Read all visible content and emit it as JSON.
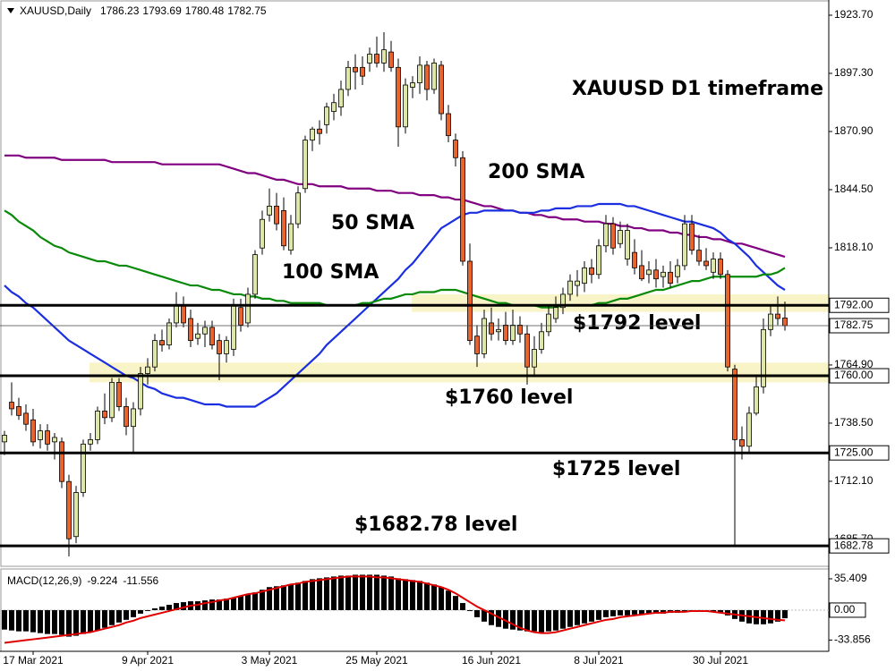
{
  "chart_data": {
    "type": "candlestick",
    "title": "XAUUSD,Daily",
    "annotation": "XAUUSD D1 timeframe",
    "up_color": "#dfe7a8",
    "down_color": "#e8642c",
    "ylim": [
      1673.9,
      1930.6
    ],
    "yticks": [
      {
        "value": 1923.7,
        "label": "1923.70"
      },
      {
        "value": 1897.3,
        "label": "1897.30"
      },
      {
        "value": 1870.9,
        "label": "1870.90"
      },
      {
        "value": 1844.5,
        "label": "1844.50"
      },
      {
        "value": 1818.1,
        "label": "1818.10"
      },
      {
        "value": 1764.9,
        "label": "1764.90"
      },
      {
        "value": 1738.5,
        "label": "1738.50"
      },
      {
        "value": 1712.1,
        "label": "1712.10"
      },
      {
        "value": 1685.7,
        "label": "1685.70"
      }
    ],
    "categories": [
      null,
      null,
      null,
      null,
      "17 Mar 2021",
      null,
      null,
      null,
      null,
      null,
      null,
      null,
      null,
      null,
      null,
      null,
      null,
      null,
      null,
      null,
      "9 Apr 2021",
      null,
      null,
      null,
      null,
      null,
      null,
      null,
      null,
      null,
      null,
      null,
      null,
      null,
      null,
      null,
      null,
      "3 May 2021",
      null,
      null,
      null,
      null,
      null,
      null,
      null,
      null,
      null,
      null,
      null,
      null,
      null,
      null,
      "25 May 2021",
      null,
      null,
      null,
      null,
      null,
      null,
      null,
      null,
      null,
      null,
      null,
      null,
      null,
      null,
      null,
      "16 Jun 2021",
      null,
      null,
      null,
      null,
      null,
      null,
      null,
      null,
      null,
      null,
      null,
      null,
      null,
      null,
      "8 Jul 2021",
      null,
      null,
      null,
      null,
      null,
      null,
      null,
      null,
      null,
      null,
      null,
      null,
      null,
      null,
      null,
      null,
      "30 Jul 2021",
      null,
      null,
      null,
      null,
      null,
      null,
      null,
      null,
      null
    ],
    "candles": [
      [
        1730,
        1735,
        1724,
        1733
      ],
      [
        1748,
        1757,
        1742,
        1745
      ],
      [
        1746,
        1750,
        1740,
        1742
      ],
      [
        1743,
        1747,
        1735,
        1738
      ],
      [
        1740,
        1745,
        1728,
        1730
      ],
      [
        1731,
        1738,
        1727,
        1735
      ],
      [
        1735,
        1738,
        1726,
        1729
      ],
      [
        1730,
        1734,
        1722,
        1732
      ],
      [
        1730,
        1732,
        1709,
        1712
      ],
      [
        1712,
        1715,
        1678,
        1686
      ],
      [
        1687,
        1710,
        1684,
        1707
      ],
      [
        1707,
        1731,
        1705,
        1729
      ],
      [
        1729,
        1734,
        1726,
        1731
      ],
      [
        1731,
        1746,
        1729,
        1744
      ],
      [
        1744,
        1752,
        1738,
        1741
      ],
      [
        1741,
        1759,
        1739,
        1757
      ],
      [
        1757,
        1759,
        1744,
        1746
      ],
      [
        1746,
        1750,
        1733,
        1737
      ],
      [
        1737,
        1748,
        1725,
        1745
      ],
      [
        1745,
        1764,
        1742,
        1761
      ],
      [
        1761,
        1768,
        1756,
        1764
      ],
      [
        1764,
        1779,
        1762,
        1776
      ],
      [
        1776,
        1781,
        1771,
        1774
      ],
      [
        1774,
        1786,
        1772,
        1784
      ],
      [
        1784,
        1798,
        1782,
        1792
      ],
      [
        1792,
        1796,
        1782,
        1784
      ],
      [
        1786,
        1790,
        1773,
        1776
      ],
      [
        1777,
        1784,
        1774,
        1779
      ],
      [
        1779,
        1785,
        1773,
        1782
      ],
      [
        1782,
        1785,
        1772,
        1774
      ],
      [
        1776,
        1779,
        1758,
        1770
      ],
      [
        1770,
        1778,
        1766,
        1776
      ],
      [
        1772,
        1795,
        1769,
        1792
      ],
      [
        1791,
        1795,
        1780,
        1783
      ],
      [
        1784,
        1800,
        1782,
        1797
      ],
      [
        1797,
        1817,
        1795,
        1815
      ],
      [
        1818,
        1835,
        1815,
        1831
      ],
      [
        1833,
        1845,
        1830,
        1837
      ],
      [
        1837,
        1843,
        1826,
        1829
      ],
      [
        1835,
        1841,
        1817,
        1819
      ],
      [
        1817,
        1833,
        1815,
        1829
      ],
      [
        1829,
        1846,
        1827,
        1843
      ],
      [
        1845,
        1869,
        1843,
        1867
      ],
      [
        1867,
        1873,
        1862,
        1872
      ],
      [
        1872,
        1876,
        1865,
        1870
      ],
      [
        1874,
        1884,
        1870,
        1882
      ],
      [
        1880,
        1888,
        1876,
        1884
      ],
      [
        1882,
        1894,
        1878,
        1890
      ],
      [
        1890,
        1903,
        1887,
        1900
      ],
      [
        1900,
        1906,
        1890,
        1898
      ],
      [
        1900,
        1905,
        1892,
        1896
      ],
      [
        1902,
        1909,
        1898,
        1906
      ],
      [
        1906,
        1914,
        1900,
        1902
      ],
      [
        1902,
        1916,
        1898,
        1908
      ],
      [
        1907,
        1912,
        1898,
        1900
      ],
      [
        1900,
        1904,
        1864,
        1873
      ],
      [
        1873,
        1895,
        1870,
        1892
      ],
      [
        1891,
        1896,
        1886,
        1893
      ],
      [
        1893,
        1905,
        1888,
        1901
      ],
      [
        1901,
        1903,
        1885,
        1890
      ],
      [
        1890,
        1904,
        1888,
        1902
      ],
      [
        1901,
        1903,
        1876,
        1879
      ],
      [
        1879,
        1883,
        1866,
        1869
      ],
      [
        1867,
        1870,
        1855,
        1859
      ],
      [
        1859,
        1862,
        1810,
        1812
      ],
      [
        1812,
        1820,
        1774,
        1776
      ],
      [
        1778,
        1783,
        1764,
        1770
      ],
      [
        1770,
        1790,
        1768,
        1786
      ],
      [
        1784,
        1791,
        1776,
        1779
      ],
      [
        1780,
        1786,
        1776,
        1781
      ],
      [
        1783,
        1789,
        1774,
        1776
      ],
      [
        1776,
        1790,
        1774,
        1783
      ],
      [
        1783,
        1787,
        1775,
        1779
      ],
      [
        1779,
        1783,
        1756,
        1764
      ],
      [
        1764,
        1778,
        1760,
        1772
      ],
      [
        1772,
        1784,
        1770,
        1780
      ],
      [
        1780,
        1792,
        1778,
        1788
      ],
      [
        1786,
        1796,
        1784,
        1791
      ],
      [
        1791,
        1800,
        1788,
        1797
      ],
      [
        1797,
        1806,
        1794,
        1803
      ],
      [
        1801,
        1808,
        1796,
        1803
      ],
      [
        1802,
        1812,
        1798,
        1809
      ],
      [
        1809,
        1813,
        1802,
        1806
      ],
      [
        1806,
        1822,
        1804,
        1819
      ],
      [
        1819,
        1833,
        1816,
        1829
      ],
      [
        1829,
        1832,
        1815,
        1818
      ],
      [
        1820,
        1830,
        1818,
        1826
      ],
      [
        1813,
        1829,
        1810,
        1826
      ],
      [
        1816,
        1822,
        1806,
        1809
      ],
      [
        1810,
        1817,
        1803,
        1804
      ],
      [
        1806,
        1812,
        1802,
        1808
      ],
      [
        1808,
        1813,
        1800,
        1804
      ],
      [
        1805,
        1810,
        1800,
        1807
      ],
      [
        1807,
        1812,
        1800,
        1802
      ],
      [
        1805,
        1813,
        1802,
        1810
      ],
      [
        1810,
        1833,
        1808,
        1829
      ],
      [
        1829,
        1833,
        1815,
        1817
      ],
      [
        1817,
        1824,
        1810,
        1812
      ],
      [
        1812,
        1818,
        1808,
        1810
      ],
      [
        1807,
        1816,
        1804,
        1813
      ],
      [
        1813,
        1816,
        1804,
        1806
      ],
      [
        1806,
        1808,
        1762,
        1764
      ],
      [
        1763,
        1765,
        1682.78,
        1731
      ],
      [
        1731,
        1737,
        1722,
        1728
      ],
      [
        1728,
        1746,
        1725,
        1743
      ],
      [
        1743,
        1760,
        1742,
        1755
      ],
      [
        1755,
        1786,
        1752,
        1781
      ],
      [
        1781,
        1792,
        1778,
        1788
      ],
      [
        1788,
        1796,
        1783,
        1786
      ],
      [
        1786.23,
        1793.69,
        1780.48,
        1782.75
      ]
    ],
    "series": [
      {
        "name": "200 SMA",
        "color": "#800080",
        "values": [
          1860,
          1860,
          1860,
          1859,
          1859,
          1859,
          1859,
          1859,
          1858,
          1858,
          1858,
          1858,
          1858,
          1858,
          1858,
          1857,
          1857,
          1857,
          1857,
          1857,
          1857,
          1857,
          1856,
          1856,
          1856,
          1856,
          1856,
          1856,
          1856,
          1856,
          1856,
          1855,
          1854,
          1853,
          1852,
          1852,
          1851,
          1850,
          1849,
          1849,
          1848,
          1847,
          1847,
          1847,
          1846,
          1846,
          1846,
          1846,
          1845,
          1845,
          1845,
          1845,
          1844,
          1844,
          1844,
          1843,
          1843,
          1843,
          1842,
          1842,
          1842,
          1841,
          1841,
          1840,
          1840,
          1839,
          1838,
          1837,
          1837,
          1836,
          1835,
          1835,
          1834,
          1834,
          1833,
          1833,
          1832,
          1832,
          1831,
          1831,
          1831,
          1830,
          1830,
          1830,
          1829,
          1829,
          1828,
          1828,
          1827,
          1827,
          1826,
          1826,
          1826,
          1825,
          1825,
          1824,
          1824,
          1823,
          1823,
          1822,
          1822,
          1821,
          1820,
          1820,
          1819,
          1818,
          1817,
          1816,
          1815,
          1814
        ]
      },
      {
        "name": "50 SMA",
        "color": "#1a2fe0",
        "values": [
          1801,
          1798,
          1796,
          1793,
          1791,
          1788,
          1785,
          1782,
          1779,
          1776,
          1774,
          1772,
          1770,
          1768,
          1766,
          1764,
          1762,
          1760,
          1759,
          1757,
          1755,
          1754,
          1752,
          1751,
          1750,
          1750,
          1749,
          1748,
          1747,
          1747,
          1747,
          1746,
          1746,
          1746,
          1746,
          1746,
          1748,
          1750,
          1752,
          1755,
          1758,
          1761,
          1764,
          1767,
          1770,
          1774,
          1777,
          1780,
          1783,
          1786,
          1789,
          1792,
          1795,
          1798,
          1801,
          1804,
          1808,
          1811,
          1815,
          1819,
          1823,
          1827,
          1829,
          1831,
          1833,
          1834,
          1834,
          1835,
          1835,
          1835,
          1835,
          1835,
          1834,
          1834,
          1834,
          1835,
          1835,
          1836,
          1836,
          1836,
          1837,
          1837,
          1837,
          1838,
          1838,
          1838,
          1838,
          1837,
          1837,
          1836,
          1835,
          1834,
          1833,
          1832,
          1831,
          1830,
          1830,
          1829,
          1828,
          1827,
          1825,
          1822,
          1820,
          1817,
          1814,
          1810,
          1807,
          1804,
          1801,
          1799
        ]
      },
      {
        "name": "100 SMA",
        "color": "#0a8a0a",
        "values": [
          1835,
          1833,
          1830,
          1828,
          1826,
          1823,
          1821,
          1819,
          1818,
          1816,
          1815,
          1814,
          1813,
          1812,
          1812,
          1811,
          1810,
          1810,
          1809,
          1808,
          1807,
          1806,
          1805,
          1804,
          1803,
          1802,
          1801,
          1801,
          1800,
          1799,
          1799,
          1798,
          1797,
          1797,
          1796,
          1796,
          1795,
          1795,
          1794,
          1794,
          1793,
          1793,
          1793,
          1793,
          1793,
          1792,
          1792,
          1792,
          1792,
          1792,
          1793,
          1793,
          1794,
          1795,
          1795,
          1796,
          1797,
          1797,
          1798,
          1798,
          1798,
          1799,
          1799,
          1799,
          1798,
          1797,
          1796,
          1795,
          1794,
          1793,
          1793,
          1792,
          1792,
          1792,
          1792,
          1791,
          1791,
          1791,
          1792,
          1792,
          1792,
          1792,
          1792,
          1793,
          1793,
          1794,
          1795,
          1795,
          1796,
          1797,
          1798,
          1799,
          1799,
          1800,
          1801,
          1802,
          1803,
          1803,
          1804,
          1805,
          1805,
          1805,
          1805,
          1805,
          1805,
          1805,
          1806,
          1806,
          1807,
          1809
        ]
      }
    ],
    "levels": [
      {
        "value": 1792,
        "label": "1792.00"
      },
      {
        "value": 1760,
        "label": "1760.00"
      },
      {
        "value": 1725,
        "label": "1725.00"
      },
      {
        "value": 1682.78,
        "label": "1682.78"
      }
    ],
    "level_notes": [
      "$1792 level",
      "$1760 level",
      "$1725 level",
      "$1682.78 level"
    ],
    "zones": [
      [
        1789,
        1797
      ],
      [
        1757,
        1766
      ]
    ],
    "zone_color": "#f8f4c8",
    "macd": {
      "title": "MACD(12,26,9)",
      "ylim": [
        -46.6,
        46.5
      ],
      "yticks": [
        35.409,
        {
          "value": 0,
          "label": "0.00"
        },
        -33.856
      ],
      "histogram": {
        "color": "#000000",
        "values": [
          -22,
          -23,
          -24,
          -24,
          -25,
          -26,
          -27,
          -27,
          -28,
          -30,
          -29,
          -27,
          -25,
          -23,
          -20,
          -17,
          -14,
          -11,
          -8,
          -4,
          -1,
          2,
          4,
          6,
          8,
          9,
          10,
          10,
          11,
          12,
          12,
          13,
          14,
          16,
          18,
          20,
          23,
          26,
          27,
          28,
          29,
          31,
          33,
          35,
          36,
          37,
          38,
          39,
          39,
          40,
          40,
          40,
          40,
          39,
          38,
          36,
          35,
          34,
          33,
          31,
          29,
          26,
          22,
          16,
          8,
          -1,
          -8,
          -13,
          -17,
          -19,
          -21,
          -22,
          -23,
          -24,
          -24,
          -25,
          -24,
          -23,
          -21,
          -19,
          -17,
          -15,
          -13,
          -11,
          -8,
          -7,
          -6,
          -6,
          -5,
          -5,
          -4,
          -4,
          -4,
          -3,
          -3,
          -2,
          -1,
          -1,
          -1,
          -2,
          -3,
          -6,
          -10,
          -13,
          -15,
          -16,
          -16,
          -15,
          -13,
          -9.224
        ]
      },
      "signal": {
        "color": "#e00000",
        "values": [
          -37,
          -36,
          -35,
          -34,
          -33,
          -32,
          -31,
          -30,
          -29,
          -28,
          -27,
          -26,
          -25,
          -23,
          -21,
          -19,
          -17,
          -14,
          -12,
          -9,
          -7,
          -5,
          -3,
          -1,
          1,
          3,
          5,
          6,
          8,
          9,
          11,
          12,
          14,
          16,
          18,
          19,
          21,
          23,
          25,
          27,
          29,
          30,
          32,
          33,
          34,
          35,
          36,
          37,
          38,
          38,
          38,
          38,
          37,
          37,
          36,
          35,
          34,
          33,
          32,
          30,
          28,
          26,
          23,
          19,
          14,
          9,
          4,
          0,
          -4,
          -8,
          -12,
          -16,
          -20,
          -23,
          -25,
          -26,
          -26,
          -25,
          -23,
          -21,
          -19,
          -17,
          -15,
          -13,
          -11,
          -10,
          -8,
          -7,
          -6,
          -5,
          -4,
          -3,
          -3,
          -2,
          -2,
          -2,
          -1,
          -1,
          -1,
          -2,
          -3,
          -4,
          -5,
          -6,
          -7,
          -8,
          -9,
          -10,
          -11,
          -11.556
        ]
      }
    }
  }
}
